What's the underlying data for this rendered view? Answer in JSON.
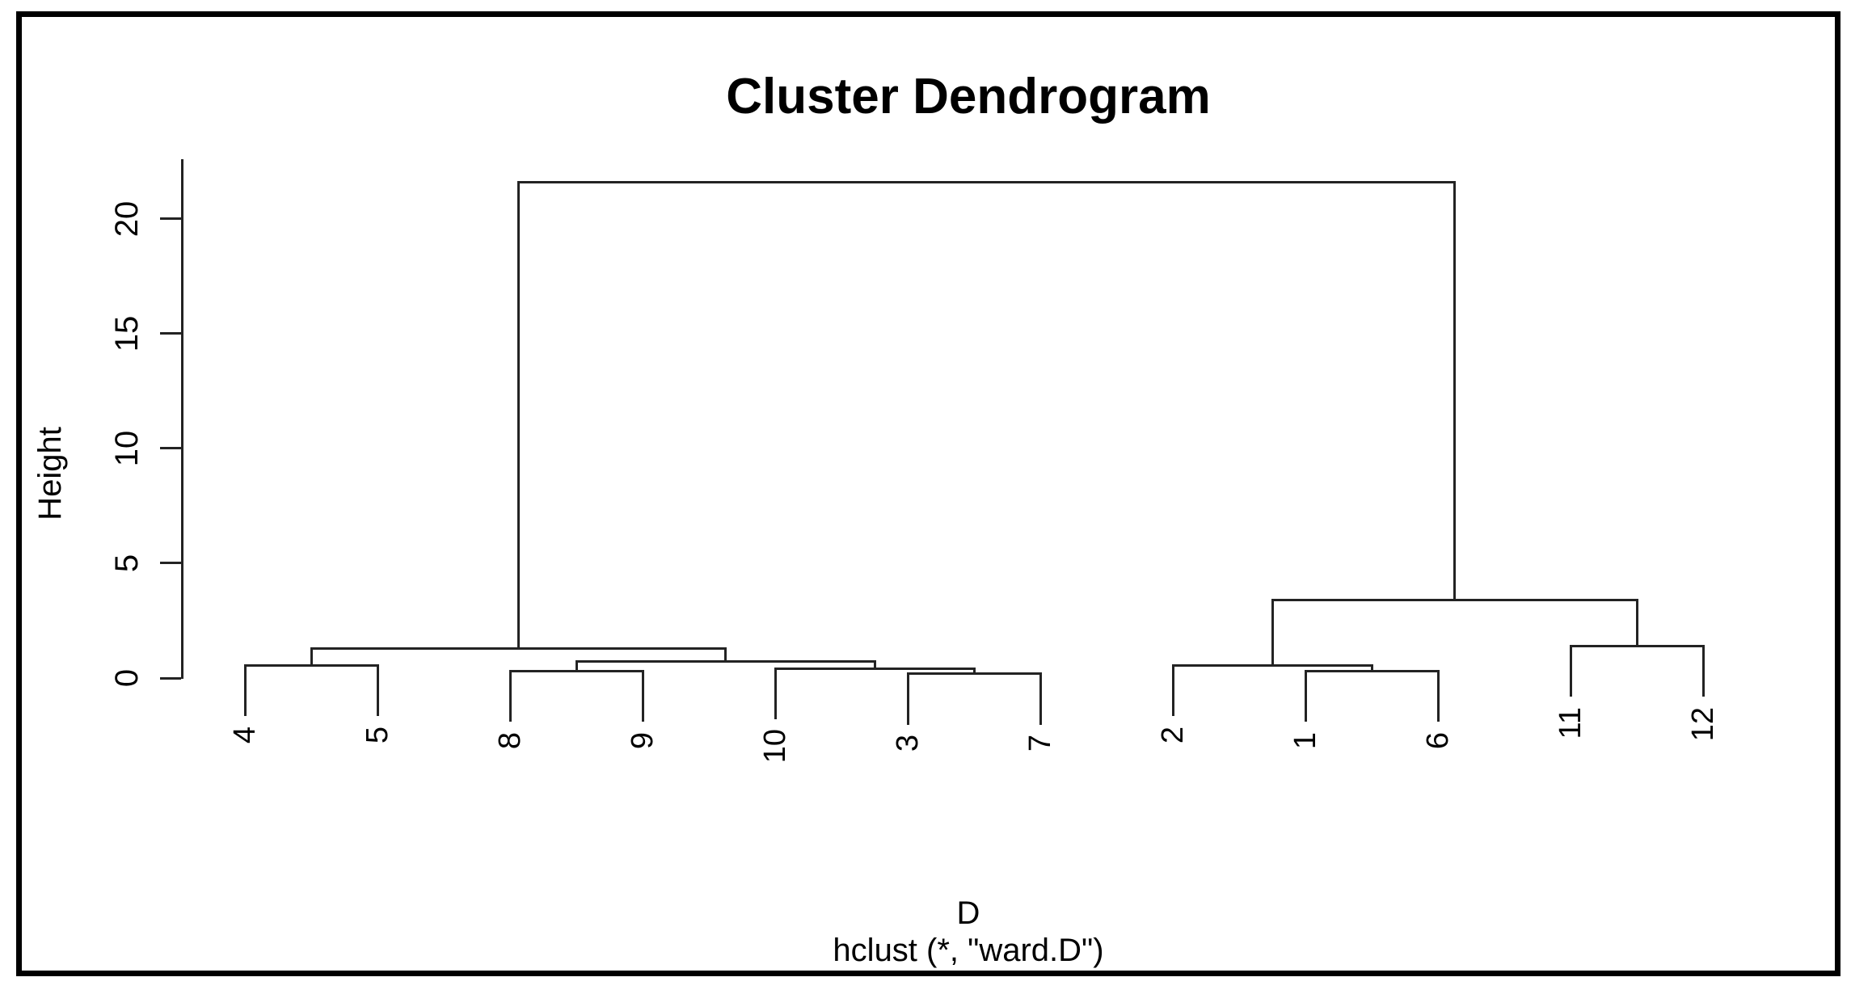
{
  "window": {
    "background_color": "#ffffff",
    "frame_color": "#000000",
    "line_color": "#232323"
  },
  "chart_data": {
    "type": "dendrogram",
    "title": "Cluster Dendrogram",
    "ylabel": "Height",
    "xlabel": "D",
    "sub": "hclust (*, \"ward.D\")",
    "legend": "none",
    "grid": "off",
    "ylim": [
      0,
      22.6
    ],
    "y_axis": {
      "ticks": [
        0,
        5,
        10,
        15,
        20
      ],
      "line_top_value": 22.6
    },
    "leaf_order": [
      "4",
      "5",
      "8",
      "9",
      "10",
      "3",
      "7",
      "2",
      "1",
      "6",
      "11",
      "12"
    ],
    "hang": 2.16,
    "merges": [
      {
        "name": "C",
        "children": [
          "4",
          "5"
        ],
        "height": 0.55
      },
      {
        "name": "D",
        "children": [
          "8",
          "9"
        ],
        "height": 0.3
      },
      {
        "name": "F",
        "children": [
          "3",
          "7"
        ],
        "height": 0.18
      },
      {
        "name": "E",
        "children": [
          "10",
          "F"
        ],
        "height": 0.42
      },
      {
        "name": "B",
        "children": [
          "D",
          "E"
        ],
        "height": 0.72
      },
      {
        "name": "A",
        "children": [
          "C",
          "B"
        ],
        "height": 1.3
      },
      {
        "name": "I",
        "children": [
          "1",
          "6"
        ],
        "height": 0.3
      },
      {
        "name": "H",
        "children": [
          "2",
          "I"
        ],
        "height": 0.55
      },
      {
        "name": "J",
        "children": [
          "11",
          "12"
        ],
        "height": 1.4
      },
      {
        "name": "G",
        "children": [
          "H",
          "J"
        ],
        "height": 3.4
      },
      {
        "name": "root",
        "children": [
          "A",
          "G"
        ],
        "height": 21.6
      }
    ]
  }
}
